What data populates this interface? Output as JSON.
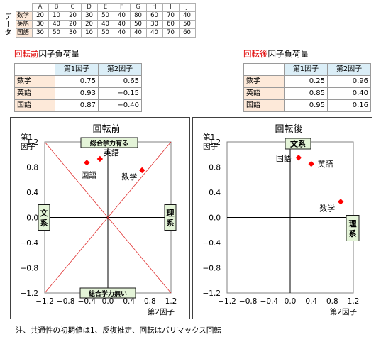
{
  "data_section": {
    "label": "データ",
    "columns": [
      "A",
      "B",
      "C",
      "D",
      "E",
      "F",
      "G",
      "H",
      "I",
      "J"
    ],
    "rows": [
      {
        "name": "数学",
        "values": [
          20,
          10,
          20,
          30,
          50,
          40,
          80,
          60,
          70,
          40
        ]
      },
      {
        "name": "英語",
        "values": [
          30,
          40,
          20,
          20,
          40,
          40,
          50,
          30,
          60,
          50
        ]
      },
      {
        "name": "国語",
        "values": [
          30,
          50,
          30,
          10,
          50,
          40,
          40,
          40,
          70,
          60
        ]
      }
    ]
  },
  "before_table": {
    "title_red": "回転前",
    "title_rest": "因子負荷量",
    "headers": [
      "第1因子",
      "第2因子"
    ],
    "rows": [
      {
        "name": "数学",
        "values": [
          "0.75",
          "0.65"
        ]
      },
      {
        "name": "英語",
        "values": [
          "0.93",
          "−0.15"
        ]
      },
      {
        "name": "国語",
        "values": [
          "0.87",
          "−0.40"
        ]
      }
    ]
  },
  "after_table": {
    "title_red": "回転後",
    "title_rest": "因子負荷量",
    "headers": [
      "第1因子",
      "第2因子"
    ],
    "rows": [
      {
        "name": "数学",
        "values": [
          "0.25",
          "0.96"
        ]
      },
      {
        "name": "英語",
        "values": [
          "0.85",
          "0.40"
        ]
      },
      {
        "name": "国語",
        "values": [
          "0.95",
          "0.16"
        ]
      }
    ]
  },
  "chart_data": [
    {
      "type": "scatter",
      "title": "回転前",
      "ylabel": "第1\n因子",
      "xlabel": "第2因子",
      "xlim": [
        -1.2,
        1.2
      ],
      "ylim": [
        -1.2,
        1.2
      ],
      "xticks": [
        "−1.2",
        "−0.8",
        "−0.4",
        "0.0",
        "0.4",
        "0.8",
        "1.2"
      ],
      "yticks": [
        "1.2",
        "0.8",
        "0.4",
        "0.0",
        "−0.4",
        "−0.8",
        "−1.2"
      ],
      "points": [
        {
          "label": "数学",
          "x": 0.65,
          "y": 0.75
        },
        {
          "label": "英語",
          "x": -0.15,
          "y": 0.93
        },
        {
          "label": "国語",
          "x": -0.4,
          "y": 0.87
        }
      ],
      "color": "#ff0000",
      "diagonals": true,
      "axis_tags": [
        {
          "text": "総合学力有る",
          "pos": "top"
        },
        {
          "text": "総合学力無い",
          "pos": "bottom"
        },
        {
          "text": "文系",
          "pos": "left"
        },
        {
          "text": "理系",
          "pos": "right"
        }
      ]
    },
    {
      "type": "scatter",
      "title": "回転後",
      "ylabel": "第1\n因子",
      "xlabel": "第2因子",
      "xlim": [
        -1.2,
        1.2
      ],
      "ylim": [
        -1.2,
        1.2
      ],
      "xticks": [
        "−1.2",
        "−0.8",
        "−0.4",
        "0.0",
        "0.4",
        "0.8",
        "1.2"
      ],
      "yticks": [
        "1.2",
        "0.8",
        "0.4",
        "0.0",
        "−0.4",
        "−0.8",
        "−1.2"
      ],
      "points": [
        {
          "label": "数学",
          "x": 0.96,
          "y": 0.25
        },
        {
          "label": "英語",
          "x": 0.4,
          "y": 0.85
        },
        {
          "label": "国語",
          "x": 0.16,
          "y": 0.95
        }
      ],
      "color": "#ff0000",
      "diagonals": false,
      "axis_tags": [
        {
          "text": "文系",
          "pos": "top"
        },
        {
          "text": "理系",
          "pos": "right"
        }
      ]
    }
  ],
  "note": "注、共通性の初期値は1、反復推定、回転はバリマックス回転"
}
